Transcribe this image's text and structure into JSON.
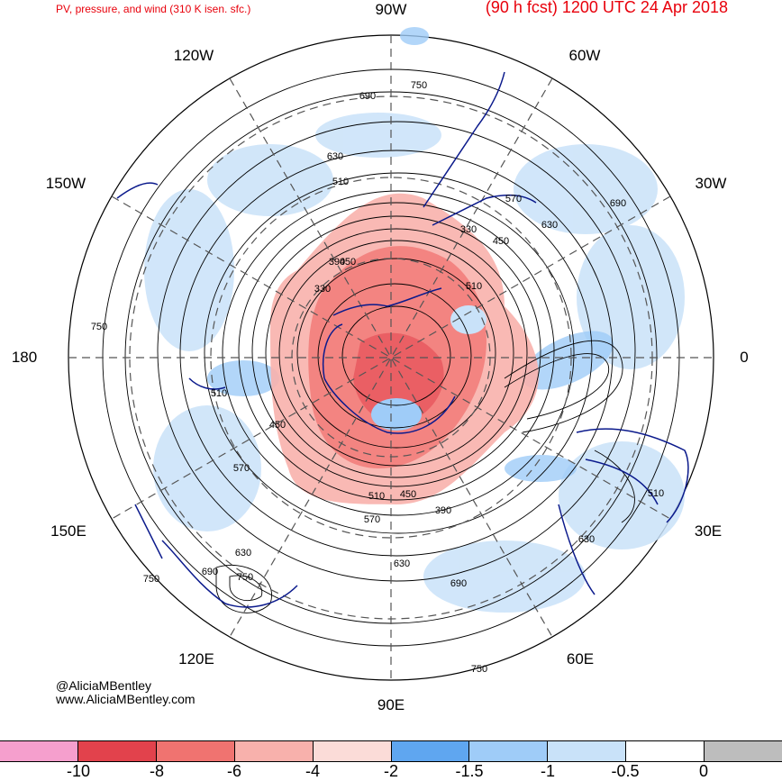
{
  "title": "PV, pressure, and wind (310 K isen. sfc.)",
  "forecast_header": "(90 h fcst) 1200 UTC 24 Apr 2018",
  "longitude_labels": {
    "top": "90W",
    "bottom": "90E",
    "left": "180",
    "right": "0",
    "upper_left": "120W",
    "upper_right": "60W",
    "left_upper": "150W",
    "right_upper": "30W",
    "left_lower": "150E",
    "right_lower": "30E",
    "lower_left": "120E",
    "lower_right": "60E"
  },
  "contour_labels": [
    "750",
    "690",
    "630",
    "510",
    "570",
    "450",
    "390",
    "330",
    "510",
    "450",
    "330",
    "390",
    "510",
    "450",
    "570",
    "630",
    "690",
    "750",
    "630",
    "690",
    "750",
    "570",
    "630",
    "690",
    "750",
    "510",
    "450",
    "510",
    "750",
    "630"
  ],
  "credits": {
    "handle": "@AliciaMBentley",
    "url": "www.AliciaMBentley.com"
  },
  "colorbar": {
    "colors": [
      "#f59fcd",
      "#e2424c",
      "#f07370",
      "#f8b1ac",
      "#fbdcd8",
      "#5fa6f0",
      "#9fccf8",
      "#c9e2f9",
      "#ffffff",
      "#bdbdbd"
    ],
    "tick_labels": [
      "-10",
      "-8",
      "-6",
      "-4",
      "-2",
      "-1.5",
      "-1",
      "-0.5",
      "0"
    ]
  }
}
